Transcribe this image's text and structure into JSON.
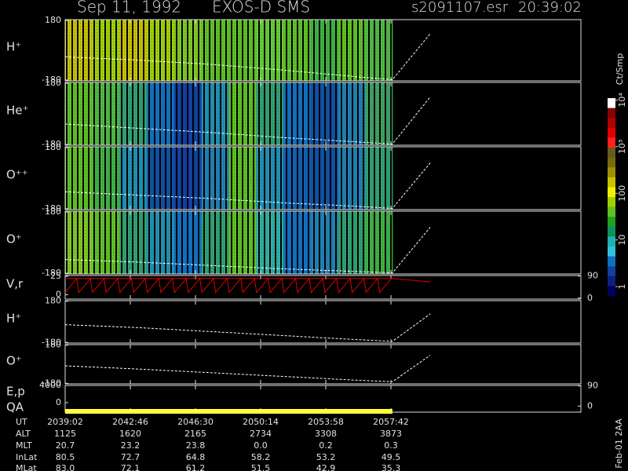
{
  "header": {
    "date": "Sep 11, 1992",
    "instrument": "EXOS-D SMS",
    "file": "s2091107.esr",
    "time": "20:39:02"
  },
  "time_axis": {
    "xlim": [
      0,
      1773
    ],
    "xticks": [
      {
        "value": 0,
        "label": "2039:02"
      },
      {
        "value": 224,
        "label": "2042:46"
      },
      {
        "value": 448,
        "label": "2046:30"
      },
      {
        "value": 672,
        "label": "2050:14"
      },
      {
        "value": 896,
        "label": "2053:58"
      },
      {
        "value": 1120,
        "label": "2057:42"
      }
    ]
  },
  "chart_data": [
    {
      "type": "spectrogram",
      "label": "H⁺",
      "ylim": [
        -185,
        185
      ],
      "yticks": [
        180,
        -180
      ],
      "xrange": [
        0,
        1125
      ],
      "cells": [
        "#c8c000",
        "#a0d000",
        "#c8c000",
        "#a0d000",
        "#80c820",
        "#60c020",
        "#60c020",
        "#66cc33",
        "#60c020",
        "#40b040",
        "#60c020",
        "#50b840"
      ],
      "series": [
        {
          "color": "#ffffff",
          "x": [
            0,
            250,
            500,
            750,
            1000,
            1125,
            1255
          ],
          "values": [
            -40,
            -60,
            -85,
            -120,
            -160,
            -178,
            100
          ]
        }
      ]
    },
    {
      "type": "spectrogram",
      "label": "He⁺",
      "ylim": [
        -185,
        185
      ],
      "yticks": [
        180,
        -180
      ],
      "xrange": [
        0,
        1125
      ],
      "cells": [
        "#60c020",
        "#50b840",
        "#30a070",
        "#1070c0",
        "#1040a0",
        "#2090b0",
        "#60c020",
        "#30a070",
        "#1070c0",
        "#1050a0",
        "#2080b0",
        "#40a060"
      ],
      "series": [
        {
          "color": "#ffffff",
          "x": [
            0,
            250,
            500,
            750,
            1000,
            1125,
            1255
          ],
          "values": [
            -60,
            -85,
            -110,
            -140,
            -165,
            -178,
            100
          ]
        }
      ]
    },
    {
      "type": "spectrogram",
      "label": "O⁺⁺",
      "ylim": [
        -185,
        185
      ],
      "yticks": [
        180,
        -180
      ],
      "xrange": [
        0,
        1125
      ],
      "cells": [
        "#60c020",
        "#40b040",
        "#2090b0",
        "#1050a0",
        "#1040a0",
        "#2080b0",
        "#60c020",
        "#2090b0",
        "#1060b0",
        "#1050a0",
        "#2080b0",
        "#30a070"
      ],
      "series": [
        {
          "color": "#ffffff",
          "x": [
            0,
            250,
            500,
            750,
            1000,
            1125,
            1255
          ],
          "values": [
            -80,
            -100,
            -120,
            -145,
            -165,
            -178,
            90
          ]
        }
      ]
    },
    {
      "type": "spectrogram",
      "label": "O⁺",
      "ylim": [
        -185,
        185
      ],
      "yticks": [
        180,
        -180
      ],
      "xrange": [
        0,
        1125
      ],
      "cells": [
        "#80c820",
        "#60c020",
        "#30a070",
        "#2090b0",
        "#1070c0",
        "#30a070",
        "#60c020",
        "#30b0a0",
        "#1070c0",
        "#2080b0",
        "#30a070",
        "#40b040"
      ],
      "series": [
        {
          "color": "#ffffff",
          "x": [
            0,
            250,
            500,
            750,
            1000,
            1125,
            1255
          ],
          "values": [
            -100,
            -115,
            -135,
            -155,
            -170,
            -178,
            90
          ]
        }
      ]
    },
    {
      "type": "line",
      "label": "V,r",
      "ylim": [
        -6,
        26
      ],
      "yticks": [
        25,
        0
      ],
      "y2lim": [
        -4,
        92
      ],
      "y2ticks": [
        90,
        0
      ],
      "series": [
        {
          "color": "#e00000",
          "x": [
            0,
            40,
            47,
            87,
            94,
            134,
            141,
            181,
            188,
            228,
            235,
            275,
            282,
            322,
            329,
            369,
            376,
            416,
            423,
            463,
            470,
            510,
            517,
            557,
            564,
            604,
            611,
            651,
            658,
            698,
            705,
            745,
            752,
            792,
            799,
            839,
            846,
            886,
            893,
            933,
            940,
            980,
            987,
            1027,
            1034,
            1074,
            1081,
            1121
          ],
          "values": [
            3,
            22,
            3,
            22,
            3,
            22,
            3,
            22,
            3,
            22,
            3,
            22,
            3,
            22,
            3,
            22,
            3,
            22,
            3,
            22,
            3,
            22,
            3,
            22,
            3,
            22,
            3,
            22,
            3,
            22,
            3,
            22,
            3,
            22,
            3,
            22,
            3,
            22,
            3,
            22,
            3,
            22,
            3,
            22,
            3,
            22,
            3,
            22
          ]
        },
        {
          "color": "#e00000",
          "axis": "y2",
          "x": [
            0,
            1125,
            1255
          ],
          "values": [
            80,
            80,
            66
          ]
        }
      ]
    },
    {
      "type": "line",
      "label": "H⁺",
      "ylim": [
        -185,
        185
      ],
      "yticks": [
        180,
        -180
      ],
      "series": [
        {
          "color": "#ffffff",
          "x": [
            0,
            250,
            500,
            750,
            1000,
            1125,
            1255
          ],
          "values": [
            -25,
            -50,
            -85,
            -120,
            -155,
            -170,
            70
          ]
        }
      ]
    },
    {
      "type": "line",
      "label": "O⁺",
      "ylim": [
        -185,
        185
      ],
      "yticks": [
        180,
        -180
      ],
      "series": [
        {
          "color": "#ffffff",
          "x": [
            0,
            250,
            500,
            750,
            1000,
            1125,
            1255
          ],
          "values": [
            -15,
            -45,
            -80,
            -115,
            -150,
            -165,
            85
          ]
        }
      ]
    },
    {
      "type": "qa",
      "label": "E,p",
      "qa_label": "QA",
      "ylim": [
        -2200,
        4000
      ],
      "yticks": [
        4000,
        0
      ],
      "y2lim": [
        -27,
        92
      ],
      "y2ticks": [
        90,
        0
      ],
      "qa_color": "#ffff40",
      "qa_x": [
        0,
        1125
      ]
    }
  ],
  "colorbar": {
    "title": "Ct/Smp",
    "log": true,
    "clim": [
      0.63,
      11000
    ],
    "colors": [
      "#ffffff",
      "#8b0000",
      "#b00000",
      "#e00000",
      "#ff2020",
      "#6a5a20",
      "#7a6a10",
      "#a09000",
      "#c8c000",
      "#f0f000",
      "#a0d000",
      "#60c020",
      "#20a020",
      "#109060",
      "#20b0b0",
      "#30c0e0",
      "#1070c0",
      "#1040a0",
      "#102080",
      "#000060"
    ],
    "ticks": [
      {
        "value": 10000,
        "label": "10⁴"
      },
      {
        "value": 1000,
        "label": "10³"
      },
      100,
      10,
      1
    ]
  },
  "footer": {
    "rows": [
      {
        "label": "UT"
      },
      {
        "label": "ALT",
        "values": [
          "1125",
          "1620",
          "2165",
          "2734",
          "3308",
          "3873"
        ]
      },
      {
        "label": "MLT",
        "values": [
          "20.7",
          "23.2",
          "23.8",
          "0.0",
          "0.2",
          "0.3"
        ]
      },
      {
        "label": "InLat",
        "values": [
          "80.5",
          "72.7",
          "64.8",
          "58.2",
          "53.2",
          "49.5"
        ]
      },
      {
        "label": "MLat",
        "values": [
          "83.0",
          "72.1",
          "61.2",
          "51.5",
          "42.9",
          "35.3"
        ]
      }
    ],
    "stamp": "Feb-01 2AA"
  }
}
